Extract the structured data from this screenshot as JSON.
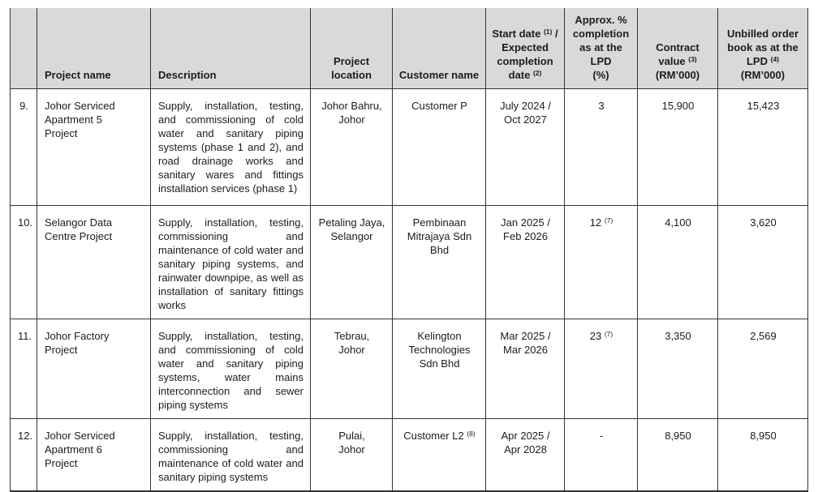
{
  "table": {
    "header": {
      "num": "",
      "project_name": "Project name",
      "description": "Description",
      "project_location": "Project\nlocation",
      "customer_name": "Customer name",
      "start_date_rich": [
        "Start date ",
        {
          "sup": "(1)"
        },
        " /\nExpected\ncompletion\ndate ",
        {
          "sup": "(2)"
        }
      ],
      "completion": "Approx. %\ncompletion\nas at the\nLPD\n(%)",
      "contract_rich": [
        "Contract\nvalue ",
        {
          "sup": "(3)"
        },
        "\n(RM’000)"
      ],
      "unbilled_rich": [
        "Unbilled order\nbook as at the\nLPD ",
        {
          "sup": "(4)"
        },
        "\n(RM’000)"
      ]
    },
    "rows": [
      {
        "num": "9.",
        "project_name": "Johor Serviced\nApartment 5\nProject",
        "description": "Supply, installation, testing, and commissioning of cold water and sanitary piping systems (phase 1 and 2), and road drainage works and sanitary wares and fittings installation services (phase 1)",
        "project_location": "Johor Bahru,\nJohor",
        "customer_name": [
          "Customer P"
        ],
        "dates": "July 2024 /\nOct 2027",
        "completion": [
          "3"
        ],
        "contract_value": "15,900",
        "unbilled": "15,423"
      },
      {
        "num": "10.",
        "project_name": "Selangor Data\nCentre Project",
        "description": "Supply, installation, testing, commissioning and maintenance of cold water and sanitary piping systems, and rainwater downpipe, as well as installation of sanitary fittings works",
        "project_location": "Petaling Jaya,\nSelangor",
        "customer_name": [
          "Pembinaan\nMitrajaya Sdn\nBhd"
        ],
        "dates": "Jan 2025 /\nFeb 2026",
        "completion": [
          "12 ",
          {
            "sup": "(7)"
          }
        ],
        "contract_value": "4,100",
        "unbilled": "3,620"
      },
      {
        "num": "11.",
        "project_name": "Johor Factory\nProject",
        "description": "Supply, installation, testing, and commissioning of cold water and sanitary piping systems, water mains interconnection and sewer piping systems",
        "project_location": "Tebrau,\nJohor",
        "customer_name": [
          "Kelington\nTechnologies\nSdn Bhd"
        ],
        "dates": "Mar 2025 /\nMar 2026",
        "completion": [
          "23 ",
          {
            "sup": "(7)"
          }
        ],
        "contract_value": "3,350",
        "unbilled": "2,569"
      },
      {
        "num": "12.",
        "project_name": "Johor Serviced\nApartment 6\nProject",
        "description": "Supply, installation, testing, commissioning and maintenance of cold water and sanitary piping systems",
        "project_location": "Pulai,\nJohor",
        "customer_name": [
          "Customer L2 ",
          {
            "sup": "(8)"
          }
        ],
        "dates": "Apr 2025 /\nApr 2028",
        "completion": [
          "-"
        ],
        "contract_value": "8,950",
        "unbilled": "8,950"
      }
    ]
  }
}
